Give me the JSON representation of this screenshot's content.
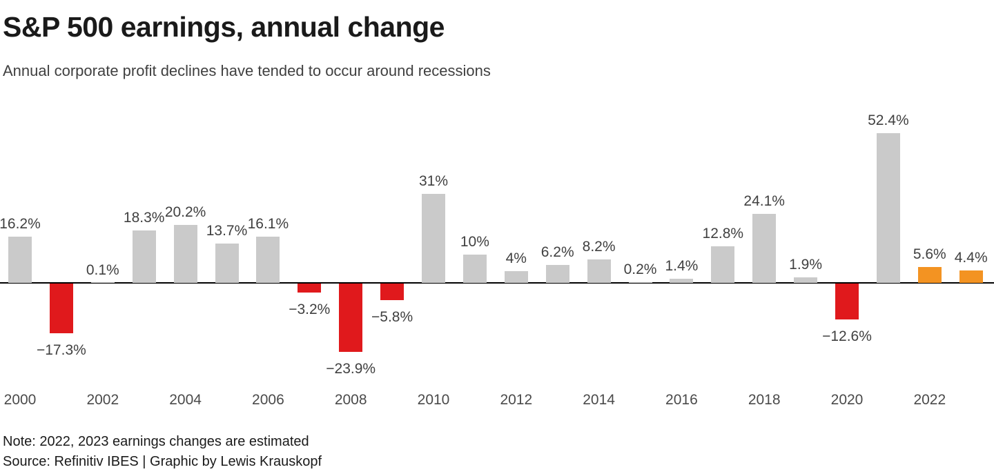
{
  "header": {
    "title": "S&P 500 earnings, annual change",
    "subtitle": "Annual corporate profit declines have tended to occur around recessions"
  },
  "footer": {
    "note": "Note: 2022, 2023 earnings changes are estimated",
    "source": "Source: Refinitiv IBES | Graphic by Lewis Krauskopf"
  },
  "chart_data": {
    "type": "bar",
    "title": "S&P 500 earnings, annual change",
    "categories": [
      2000,
      2001,
      2002,
      2003,
      2004,
      2005,
      2006,
      2007,
      2008,
      2009,
      2010,
      2011,
      2012,
      2013,
      2014,
      2015,
      2016,
      2017,
      2018,
      2019,
      2020,
      2021,
      2022,
      2023
    ],
    "values": [
      16.2,
      -17.3,
      0.1,
      18.3,
      20.2,
      13.7,
      16.1,
      -3.2,
      -23.9,
      -5.8,
      31,
      10,
      4,
      6.2,
      8.2,
      0.2,
      1.4,
      12.8,
      24.1,
      1.9,
      -12.6,
      52.4,
      5.6,
      4.4
    ],
    "data_labels": [
      "16.2%",
      "−17.3%",
      "0.1%",
      "18.3%",
      "20.2%",
      "13.7%",
      "16.1%",
      "−3.2%",
      "−23.9%",
      "−5.8%",
      "31%",
      "10%",
      "4%",
      "6.2%",
      "8.2%",
      "0.2%",
      "1.4%",
      "12.8%",
      "24.1%",
      "1.9%",
      "−12.6%",
      "52.4%",
      "5.6%",
      "4.4%"
    ],
    "x_tick_labels": [
      "2000",
      "2002",
      "2004",
      "2006",
      "2008",
      "2010",
      "2012",
      "2014",
      "2016",
      "2018",
      "2020",
      "2022"
    ],
    "estimated_years": [
      2022,
      2023
    ],
    "xlabel": "",
    "ylabel": "",
    "ylim": [
      -23.9,
      52.4
    ],
    "grid": false,
    "legend": false,
    "colors": {
      "positive_bar": "#cacaca",
      "negative_bar": "#e0191c",
      "estimated_bar": "#f39322",
      "axis": "#000000",
      "label_text": "#404040"
    }
  }
}
